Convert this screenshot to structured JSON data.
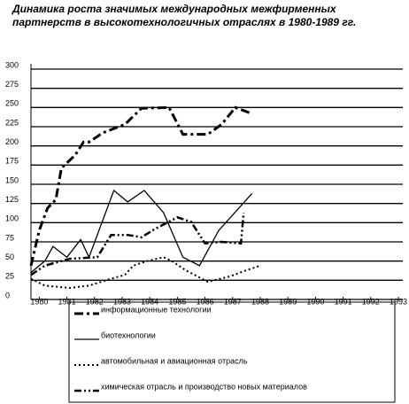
{
  "chart_data": {
    "type": "line",
    "title": "Динамика роста значимых международных межфирменных партнерств в высокотехнологичных отраслях в 1980-1989 гг.",
    "xlim": [
      1979.7,
      1993
    ],
    "xticks": [
      1980,
      1981,
      1982,
      1983,
      1984,
      1985,
      1986,
      1987,
      1988,
      1989,
      1990,
      1991,
      1992,
      1993
    ],
    "ylim": [
      0,
      300
    ],
    "yticks": [
      0,
      25,
      50,
      75,
      100,
      125,
      150,
      175,
      200,
      225,
      250,
      275,
      300
    ],
    "grid": true,
    "series": [
      {
        "name": "информационные технологии",
        "color": "#000000",
        "x": [
          1979.7,
          1980,
          1980.3,
          1980.6,
          1980.8,
          1981.3,
          1981.6,
          1981.8,
          1982.3,
          1983.1,
          1983.7,
          1984.7,
          1985.2,
          1986.1,
          1986.6,
          1987.1,
          1987.7
        ],
        "values": [
          44,
          90,
          119,
          130,
          171,
          188,
          205,
          205,
          217,
          228,
          249,
          250,
          215,
          215,
          228,
          250,
          242
        ]
      },
      {
        "name": "биотехнологии",
        "color": "#000000",
        "x": [
          1979.7,
          1980.2,
          1980.5,
          1981,
          1981.5,
          1981.8,
          1982.7,
          1983.2,
          1983.8,
          1984.5,
          1985.2,
          1985.8,
          1986.5,
          1987.7
        ],
        "values": [
          35,
          50,
          69,
          55,
          78,
          55,
          142,
          127,
          142,
          113,
          55,
          44,
          90,
          138
        ]
      },
      {
        "name": "автомобильная и авиационная отрасль",
        "color": "#000000",
        "x": [
          1979.7,
          1980.2,
          1981.1,
          1981.8,
          1982.6,
          1983.1,
          1983.4,
          1983.9,
          1984.5,
          1984.8,
          1985.3,
          1986.1,
          1986.9,
          1987.5,
          1988
        ],
        "values": [
          27,
          18,
          15,
          18,
          27,
          32,
          44,
          50,
          55,
          50,
          38,
          23,
          30,
          38,
          44
        ]
      },
      {
        "name": "химическая отрасль  и производство новых материалов",
        "color": "#000000",
        "x": [
          1979.7,
          1980.2,
          1981.1,
          1982.1,
          1982.6,
          1983.2,
          1983.7,
          1984.2,
          1985,
          1985.5,
          1986,
          1986.6,
          1987.3,
          1987.4
        ],
        "values": [
          32,
          44,
          53,
          55,
          84,
          84,
          81,
          92,
          107,
          101,
          73,
          75,
          73,
          113
        ]
      }
    ]
  }
}
